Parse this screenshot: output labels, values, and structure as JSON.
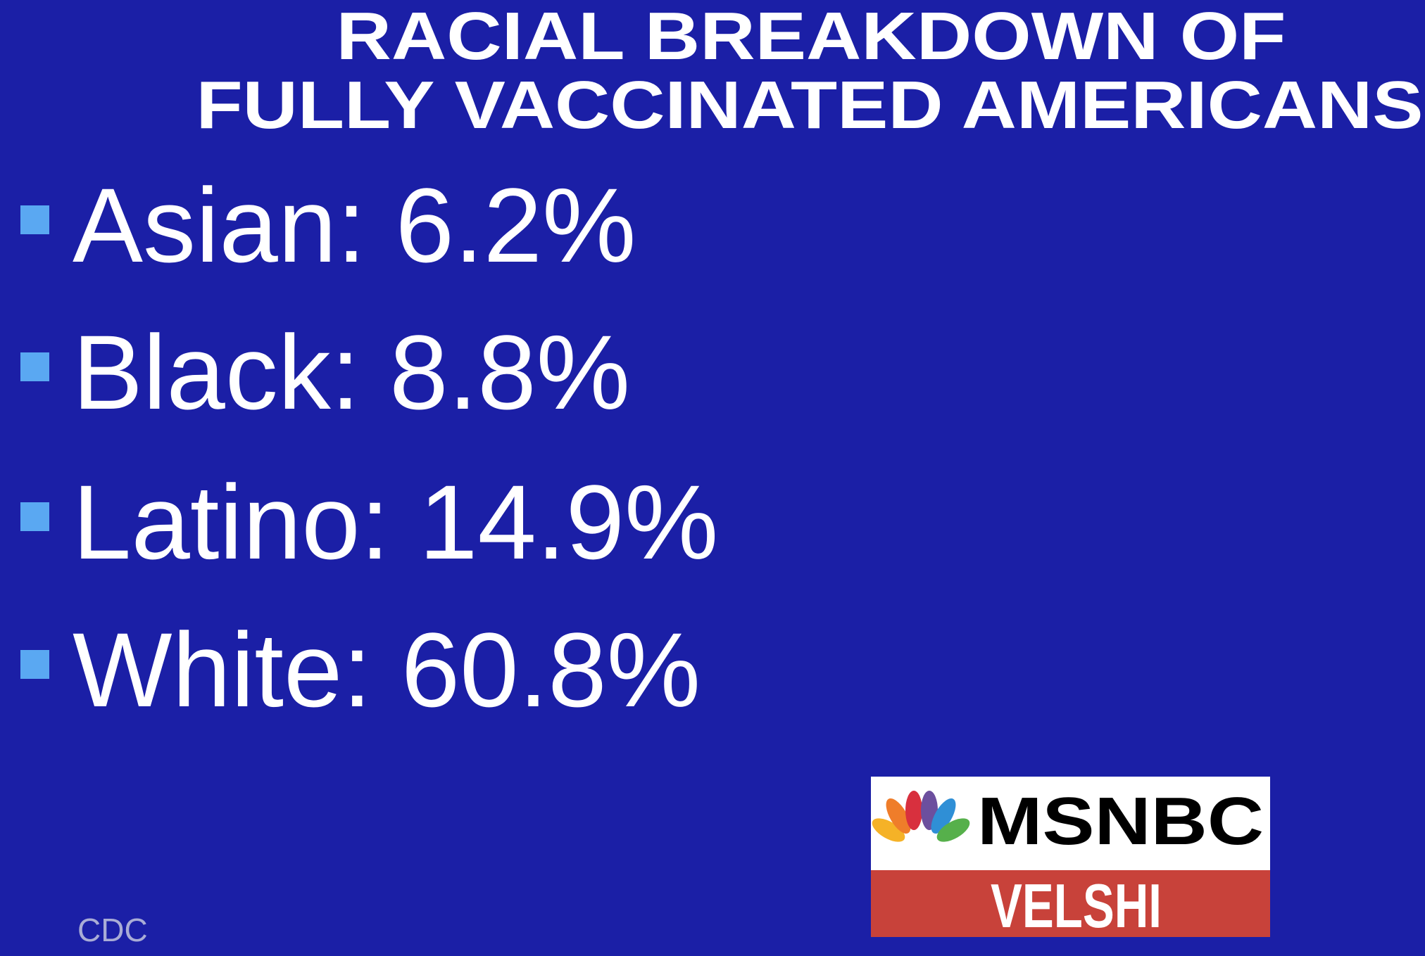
{
  "title": {
    "lines": [
      "RACIAL BREAKDOWN OF",
      "FULLY VACCINATED AMERICANS"
    ]
  },
  "items": [
    "Asian: 6.2%",
    "Black: 8.8%",
    "Latino: 14.9%",
    "White: 60.8%"
  ],
  "source": "CDC",
  "logo": {
    "network": "MSNBC",
    "show": "VELSHI"
  }
}
